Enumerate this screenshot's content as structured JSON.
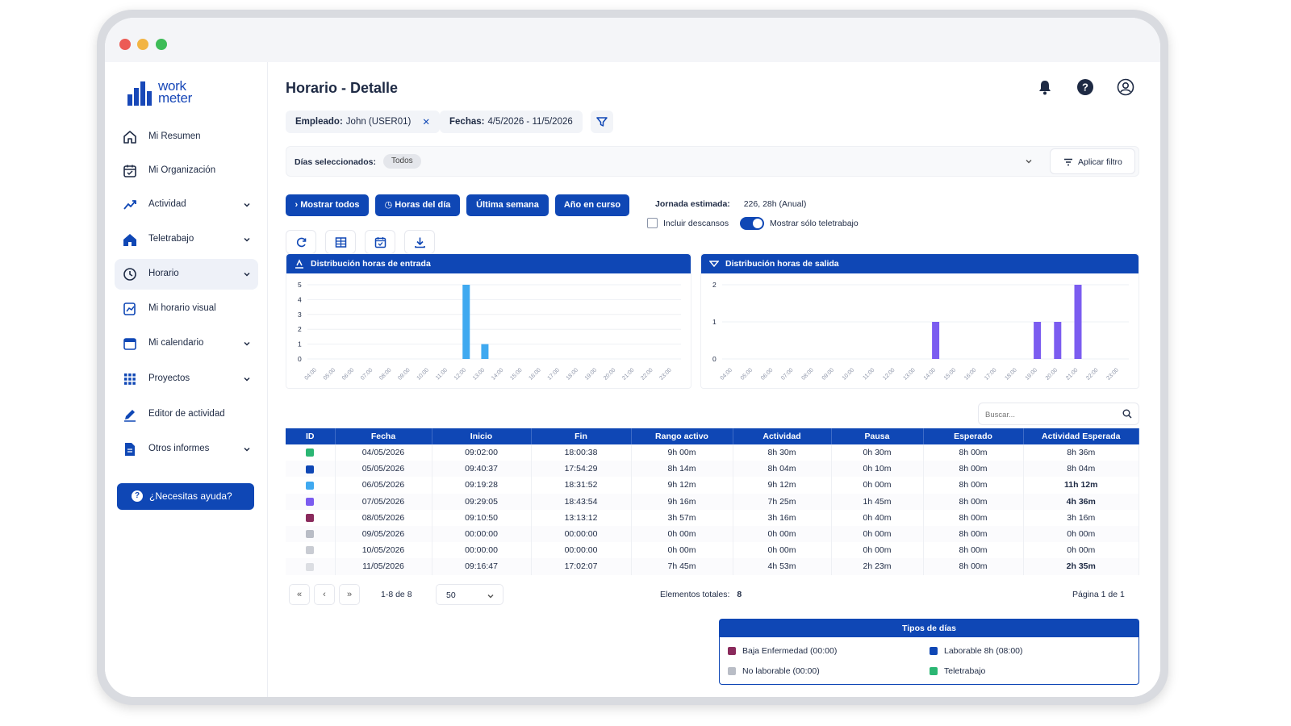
{
  "window": {
    "title": "Horario - Detalle"
  },
  "brand": {
    "line1": "work",
    "line2": "meter"
  },
  "sidebar": {
    "items": [
      {
        "label": "Mi Resumen",
        "icon": "home-icon",
        "chevron": false
      },
      {
        "label": "Mi Organización",
        "icon": "calendar-check-icon",
        "chevron": false
      },
      {
        "label": "Actividad",
        "icon": "trend-icon",
        "chevron": true
      },
      {
        "label": "Teletrabajo",
        "icon": "remote-house-icon",
        "chevron": true
      },
      {
        "label": "Horario",
        "icon": "clock-icon",
        "chevron": true,
        "active": true
      },
      {
        "label": "Mi horario visual",
        "icon": "schedule-chart-icon",
        "chevron": false
      },
      {
        "label": "Mi calendario",
        "icon": "calendar-icon",
        "chevron": true
      },
      {
        "label": "Proyectos",
        "icon": "grid-icon",
        "chevron": true
      },
      {
        "label": "Editor de actividad",
        "icon": "pencil-icon",
        "chevron": false
      },
      {
        "label": "Otros informes",
        "icon": "document-icon",
        "chevron": true
      }
    ],
    "help_button": "¿Necesitas ayuda?"
  },
  "filters": {
    "employee_label": "Empleado:",
    "employee_value": "John (USER01)",
    "dates_label": "Fechas:",
    "dates_value": "4/5/2026 - 11/5/2026",
    "days_label": "Días seleccionados:",
    "days_value": "Todos",
    "apply_button": "Aplicar filtro"
  },
  "actions": {
    "show_all": "Mostrar todos",
    "day_hours": "Horas del día",
    "last_week": "Última semana",
    "current_year": "Año en curso"
  },
  "jornada": {
    "label": "Jornada estimada:",
    "value": "226, 28h (Anual)",
    "include_breaks": "Incluir descansos",
    "include_breaks_checked": false,
    "only_remote": "Mostrar sólo teletrabajo",
    "only_remote_on": true
  },
  "colors": {
    "primary": "#0f47b5",
    "bar_entry": "#3fa9f0",
    "bar_exit": "#7b5cf0",
    "alert_red": "#f0422a"
  },
  "chart_data": [
    {
      "type": "bar",
      "title": "Distribución horas de entrada",
      "categories": [
        "04:00",
        "05:00",
        "06:00",
        "07:00",
        "08:00",
        "09:00",
        "10:00",
        "11:00",
        "12:00",
        "13:00",
        "14:00",
        "15:00",
        "16:00",
        "17:00",
        "18:00",
        "19:00",
        "20:00",
        "21:00",
        "22:00",
        "23:00"
      ],
      "values": [
        0,
        0,
        0,
        0,
        0,
        0,
        0,
        0,
        5,
        1,
        0,
        0,
        0,
        0,
        0,
        0,
        0,
        0,
        0,
        0
      ],
      "yticks": [
        0,
        1,
        2,
        3,
        4,
        5
      ],
      "ylim": [
        0,
        5
      ]
    },
    {
      "type": "bar",
      "title": "Distribución horas de salida",
      "categories": [
        "04:00",
        "05:00",
        "06:00",
        "07:00",
        "08:00",
        "09:00",
        "10:00",
        "11:00",
        "12:00",
        "13:00",
        "14:00",
        "15:00",
        "16:00",
        "17:00",
        "18:00",
        "19:00",
        "20:00",
        "21:00",
        "22:00",
        "23:00"
      ],
      "values": [
        0,
        0,
        0,
        0,
        0,
        0,
        0,
        0,
        0,
        0,
        1,
        0,
        0,
        0,
        0,
        1,
        1,
        2,
        0,
        0
      ],
      "yticks": [
        0,
        1,
        2
      ],
      "ylim": [
        0,
        2
      ]
    }
  ],
  "search": {
    "placeholder": "Buscar..."
  },
  "table": {
    "columns": [
      "ID",
      "Fecha",
      "Inicio",
      "Fin",
      "Rango activo",
      "Actividad",
      "Pausa",
      "Esperado",
      "Actividad Esperada"
    ],
    "rows": [
      {
        "color": "#2bb673",
        "fecha": "04/05/2026",
        "inicio": "09:02:00",
        "fin": "18:00:38",
        "rango": "9h 00m",
        "actividad": "8h 30m",
        "pausa": "0h 30m",
        "esperado": "8h 00m",
        "act_esperada": "8h 36m",
        "alert": false
      },
      {
        "color": "#0f47b5",
        "fecha": "05/05/2026",
        "inicio": "09:40:37",
        "fin": "17:54:29",
        "rango": "8h 14m",
        "actividad": "8h 04m",
        "pausa": "0h 10m",
        "esperado": "8h 00m",
        "act_esperada": "8h 04m",
        "alert": false
      },
      {
        "color": "#3fa9f0",
        "fecha": "06/05/2026",
        "inicio": "09:19:28",
        "fin": "18:31:52",
        "rango": "9h 12m",
        "actividad": "9h 12m",
        "pausa": "0h 00m",
        "esperado": "8h 00m",
        "act_esperada": "11h 12m",
        "alert": true
      },
      {
        "color": "#7b5cf0",
        "fecha": "07/05/2026",
        "inicio": "09:29:05",
        "fin": "18:43:54",
        "rango": "9h 16m",
        "actividad": "7h 25m",
        "pausa": "1h 45m",
        "esperado": "8h 00m",
        "act_esperada": "4h 36m",
        "alert": true
      },
      {
        "color": "#8a2a5c",
        "fecha": "08/05/2026",
        "inicio": "09:10:50",
        "fin": "13:13:12",
        "rango": "3h 57m",
        "actividad": "3h 16m",
        "pausa": "0h 40m",
        "esperado": "8h 00m",
        "act_esperada": "3h 16m",
        "alert": false
      },
      {
        "color": "#b9bdc6",
        "fecha": "09/05/2026",
        "inicio": "00:00:00",
        "fin": "00:00:00",
        "rango": "0h 00m",
        "actividad": "0h 00m",
        "pausa": "0h 00m",
        "esperado": "8h 00m",
        "act_esperada": "0h 00m",
        "alert": false
      },
      {
        "color": "#c9ccd3",
        "fecha": "10/05/2026",
        "inicio": "00:00:00",
        "fin": "00:00:00",
        "rango": "0h 00m",
        "actividad": "0h 00m",
        "pausa": "0h 00m",
        "esperado": "8h 00m",
        "act_esperada": "0h 00m",
        "alert": false
      },
      {
        "color": "#dcdee3",
        "fecha": "11/05/2026",
        "inicio": "09:16:47",
        "fin": "17:02:07",
        "rango": "7h 45m",
        "actividad": "4h 53m",
        "pausa": "2h 23m",
        "esperado": "8h 00m",
        "act_esperada": "2h 35m",
        "alert": true
      }
    ]
  },
  "pager": {
    "first": "«",
    "prev": "‹",
    "next": "»",
    "range": "1-8 de 8",
    "page_size": "50",
    "total_label": "Elementos totales:",
    "total_value": "8",
    "page_text": "Página 1 de 1"
  },
  "legend": {
    "title": "Tipos de días",
    "items": [
      {
        "label": "Baja Enfermedad (00:00)",
        "color": "#8a2a5c"
      },
      {
        "label": "Laborable 8h (08:00)",
        "color": "#0f47b5"
      },
      {
        "label": "No laborable (00:00)",
        "color": "#b9bdc6"
      },
      {
        "label": "Teletrabajo",
        "color": "#2bb673"
      }
    ]
  }
}
